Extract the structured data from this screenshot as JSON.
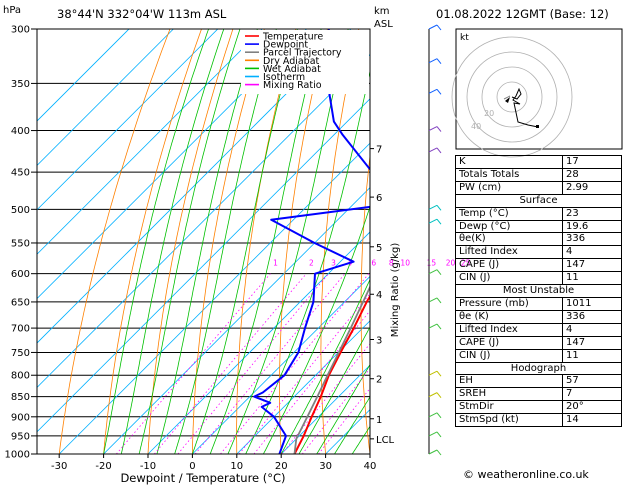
{
  "header": {
    "location": "38°44'N  332°04'W  113m  ASL",
    "datetime": "01.08.2022  12GMT  (Base: 12)",
    "hpa_unit": "hPa",
    "km_unit": "km",
    "asl_unit": "ASL"
  },
  "legend": [
    {
      "label": "Temperature",
      "color": "#ff0000"
    },
    {
      "label": "Dewpoint",
      "color": "#0000ff"
    },
    {
      "label": "Parcel Trajectory",
      "color": "#808080"
    },
    {
      "label": "Dry Adiabat",
      "color": "#ff8000"
    },
    {
      "label": "Wet Adiabat",
      "color": "#00c000"
    },
    {
      "label": "Isotherm",
      "color": "#00b0ff"
    },
    {
      "label": "Mixing Ratio",
      "color": "#ff00ff"
    }
  ],
  "chart_data": {
    "type": "line",
    "title": "",
    "xlabel": "Dewpoint / Temperature (°C)",
    "ylabel": "hPa",
    "y_scale": "log",
    "xlim": [
      -35,
      40
    ],
    "ylim": [
      1000,
      300
    ],
    "skew": "45°",
    "x_ticks": [
      -30,
      -20,
      -10,
      0,
      10,
      20,
      30,
      40
    ],
    "pressure_levels": [
      300,
      350,
      400,
      450,
      500,
      550,
      600,
      650,
      700,
      750,
      800,
      850,
      900,
      950,
      1000
    ],
    "height_axis": {
      "label": "km ASL",
      "ticks": [
        {
          "label": "7",
          "p": 421
        },
        {
          "label": "6",
          "p": 483
        },
        {
          "label": "5",
          "p": 556
        },
        {
          "label": "4",
          "p": 636
        },
        {
          "label": "3",
          "p": 723
        },
        {
          "label": "2",
          "p": 808
        },
        {
          "label": "1",
          "p": 905
        },
        {
          "label": "LCL",
          "p": 958
        }
      ]
    },
    "mixing_ratio_axis": {
      "label": "Mixing Ratio (g/kg)",
      "values": [
        "1",
        "2",
        "3",
        "4",
        "6",
        "8",
        "10",
        "15",
        "20",
        "25"
      ],
      "label_pressure": 590
    },
    "series": [
      {
        "name": "Temperature",
        "color": "#ff0000",
        "points": [
          [
            1000,
            23
          ],
          [
            950,
            21
          ],
          [
            900,
            18.5
          ],
          [
            850,
            16
          ],
          [
            800,
            13
          ],
          [
            750,
            10.5
          ],
          [
            700,
            8
          ],
          [
            650,
            5
          ],
          [
            600,
            2.5
          ],
          [
            550,
            -1
          ],
          [
            500,
            -5
          ],
          [
            450,
            -11
          ],
          [
            400,
            -17
          ],
          [
            350,
            -25
          ],
          [
            300,
            -34
          ]
        ]
      },
      {
        "name": "Dewpoint",
        "color": "#0000ff",
        "points": [
          [
            1000,
            19.6
          ],
          [
            950,
            17
          ],
          [
            900,
            10
          ],
          [
            875,
            5
          ],
          [
            865,
            6
          ],
          [
            850,
            1
          ],
          [
            840,
            2
          ],
          [
            800,
            3
          ],
          [
            750,
            1
          ],
          [
            700,
            -3
          ],
          [
            650,
            -7
          ],
          [
            600,
            -13
          ],
          [
            580,
            -7
          ],
          [
            550,
            -20
          ],
          [
            515,
            -35
          ],
          [
            495,
            -14
          ],
          [
            450,
            -23
          ],
          [
            405,
            -38
          ],
          [
            390,
            -43
          ],
          [
            350,
            -53
          ],
          [
            300,
            -65
          ]
        ]
      },
      {
        "name": "Parcel Trajectory",
        "color": "#808080",
        "points": [
          [
            1000,
            23
          ],
          [
            958,
            20
          ],
          [
            900,
            17.5
          ],
          [
            850,
            15.2
          ],
          [
            800,
            12.7
          ],
          [
            750,
            10.1
          ],
          [
            700,
            7.3
          ],
          [
            650,
            4.2
          ],
          [
            600,
            0.8
          ],
          [
            550,
            -3.0
          ],
          [
            500,
            -7.4
          ],
          [
            450,
            -12.5
          ],
          [
            400,
            -18.5
          ],
          [
            350,
            -25.7
          ],
          [
            300,
            -34.5
          ]
        ]
      }
    ]
  },
  "hodograph": {
    "label": "kt",
    "ring_labels": [
      "20",
      "40"
    ]
  },
  "indices": {
    "k_label": "K",
    "k_value": "17",
    "tt_label": "Totals Totals",
    "tt_value": "28",
    "pw_label": "PW (cm)",
    "pw_value": "2.99",
    "surface": {
      "title": "Surface",
      "temp_label": "Temp (°C)",
      "temp_value": "23",
      "dewp_label": "Dewp (°C)",
      "dewp_value": "19.6",
      "theta_label": "θe(K)",
      "theta_value": "336",
      "li_label": "Lifted Index",
      "li_value": "4",
      "cape_label": "CAPE (J)",
      "cape_value": "147",
      "cin_label": "CIN (J)",
      "cin_value": "11"
    },
    "most_unstable": {
      "title": "Most Unstable",
      "pressure_label": "Pressure (mb)",
      "pressure_value": "1011",
      "theta_label": "θe (K)",
      "theta_value": "336",
      "li_label": "Lifted Index",
      "li_value": "4",
      "cape_label": "CAPE (J)",
      "cape_value": "147",
      "cin_label": "CIN (J)",
      "cin_value": "11"
    },
    "hodograph_box": {
      "title": "Hodograph",
      "eh_label": "EH",
      "eh_value": "57",
      "sreh_label": "SREH",
      "sreh_value": "7",
      "stmdir_label": "StmDir",
      "stmdir_value": "20°",
      "stmspd_label": "StmSpd (kt)",
      "stmspd_value": "14"
    }
  },
  "credit": "© weatheronline.co.uk"
}
